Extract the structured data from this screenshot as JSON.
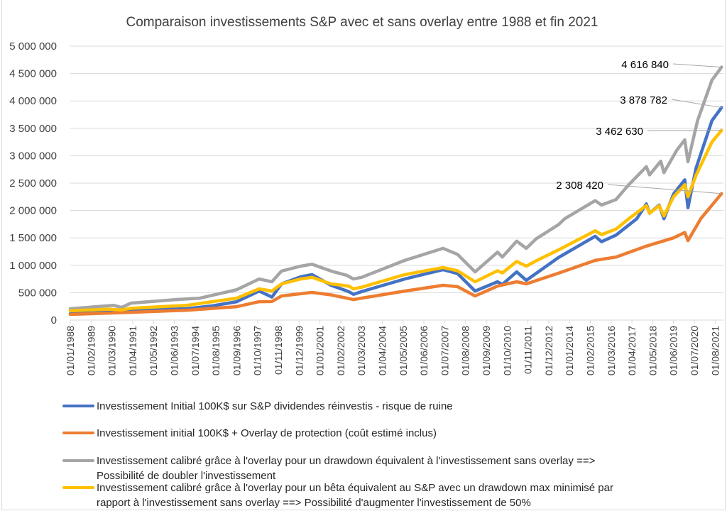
{
  "chart_data": {
    "type": "line",
    "title": "Comparaison investissements S&P avec et sans overlay entre 1988 et fin 2021",
    "xlabel": "",
    "ylabel": "",
    "ylim": [
      0,
      5000000
    ],
    "grid": true,
    "legend_position": "bottom",
    "yticks": [
      "0",
      "500 000",
      "1 000 000",
      "1 500 000",
      "2 000 000",
      "2 500 000",
      "3 000 000",
      "3 500 000",
      "4 000 000",
      "4 500 000",
      "5 000 000"
    ],
    "xticks": [
      "01/01/1988",
      "01/02/1989",
      "01/03/1990",
      "01/04/1991",
      "01/05/1992",
      "01/06/1993",
      "01/07/1994",
      "01/08/1995",
      "01/09/1996",
      "01/10/1997",
      "01/11/1998",
      "01/12/1999",
      "01/01/2001",
      "01/02/2002",
      "01/03/2003",
      "01/04/2004",
      "01/05/2005",
      "01/06/2006",
      "01/07/2007",
      "01/08/2008",
      "01/09/2009",
      "01/10/2010",
      "01/11/2011",
      "01/12/2012",
      "01/01/2014",
      "01/02/2015",
      "01/03/2016",
      "01/04/2017",
      "01/05/2018",
      "01/06/2019",
      "01/07/2020",
      "01/08/2021"
    ],
    "series": [
      {
        "name": "Investissement Initial 100K$ sur S&P dividendes réinvestis - risque de ruine",
        "color": "#4472C4",
        "points": [
          [
            "1988-01",
            117000
          ],
          [
            "1990-01",
            160000
          ],
          [
            "1990-09",
            150000
          ],
          [
            "1991-03",
            175000
          ],
          [
            "1994-02",
            207000
          ],
          [
            "1995-06",
            260000
          ],
          [
            "1996-09",
            335000
          ],
          [
            "1997-11",
            530000
          ],
          [
            "1998-07",
            420000
          ],
          [
            "1999-01",
            660000
          ],
          [
            "2000-01",
            790000
          ],
          [
            "2000-08",
            830000
          ],
          [
            "2001-08",
            635000
          ],
          [
            "2002-07",
            520000
          ],
          [
            "2002-10",
            470000
          ],
          [
            "2003-03",
            520000
          ],
          [
            "2005-06",
            750000
          ],
          [
            "2007-06",
            920000
          ],
          [
            "2008-03",
            850000
          ],
          [
            "2009-02",
            530000
          ],
          [
            "2010-04",
            700000
          ],
          [
            "2010-07",
            650000
          ],
          [
            "2011-04",
            880000
          ],
          [
            "2011-10",
            725000
          ],
          [
            "2012-04",
            850000
          ],
          [
            "2013-06",
            1140000
          ],
          [
            "2015-05",
            1530000
          ],
          [
            "2015-09",
            1430000
          ],
          [
            "2016-06",
            1550000
          ],
          [
            "2017-07",
            1850000
          ],
          [
            "2018-01",
            2120000
          ],
          [
            "2018-03",
            1950000
          ],
          [
            "2018-09",
            2100000
          ],
          [
            "2018-12",
            1850000
          ],
          [
            "2019-06",
            2300000
          ],
          [
            "2020-01",
            2560000
          ],
          [
            "2020-03",
            2050000
          ],
          [
            "2020-08",
            2770000
          ],
          [
            "2021-06",
            3640000
          ],
          [
            "2021-12",
            3878782
          ]
        ]
      },
      {
        "name": "Investissement initial 100K$ + Overlay de protection (coût estimé inclus)",
        "color": "#ED7D31",
        "points": [
          [
            "1988-01",
            103000
          ],
          [
            "1991-01",
            140000
          ],
          [
            "1994-02",
            180000
          ],
          [
            "1996-09",
            245000
          ],
          [
            "1997-11",
            335000
          ],
          [
            "1998-07",
            340000
          ],
          [
            "1999-01",
            440000
          ],
          [
            "2000-08",
            505000
          ],
          [
            "2001-08",
            460000
          ],
          [
            "2002-10",
            375000
          ],
          [
            "2003-03",
            400000
          ],
          [
            "2005-06",
            530000
          ],
          [
            "2007-06",
            635000
          ],
          [
            "2008-03",
            610000
          ],
          [
            "2009-02",
            440000
          ],
          [
            "2010-04",
            620000
          ],
          [
            "2011-04",
            700000
          ],
          [
            "2011-10",
            660000
          ],
          [
            "2013-06",
            855000
          ],
          [
            "2015-05",
            1090000
          ],
          [
            "2016-06",
            1150000
          ],
          [
            "2018-01",
            1350000
          ],
          [
            "2019-06",
            1500000
          ],
          [
            "2020-01",
            1600000
          ],
          [
            "2020-03",
            1450000
          ],
          [
            "2020-11",
            1850000
          ],
          [
            "2021-12",
            2308420
          ]
        ]
      },
      {
        "name": "Investissement calibré grâce à l'overlay pour un drawdown équivalent à l'investissement sans overlay ==> Possibilité de doubler l'investissement",
        "color": "#A5A5A5",
        "points": [
          [
            "1988-01",
            207000
          ],
          [
            "1990-04",
            270000
          ],
          [
            "1990-09",
            230000
          ],
          [
            "1991-03",
            310000
          ],
          [
            "1993-07",
            375000
          ],
          [
            "1994-10",
            400000
          ],
          [
            "1996-09",
            555000
          ],
          [
            "1997-11",
            750000
          ],
          [
            "1998-07",
            700000
          ],
          [
            "1999-01",
            895000
          ],
          [
            "2000-01",
            985000
          ],
          [
            "2000-08",
            1020000
          ],
          [
            "2001-08",
            895000
          ],
          [
            "2002-06",
            815000
          ],
          [
            "2002-10",
            750000
          ],
          [
            "2003-03",
            780000
          ],
          [
            "2005-06",
            1090000
          ],
          [
            "2007-06",
            1310000
          ],
          [
            "2008-03",
            1200000
          ],
          [
            "2009-02",
            880000
          ],
          [
            "2010-04",
            1240000
          ],
          [
            "2010-07",
            1150000
          ],
          [
            "2011-04",
            1440000
          ],
          [
            "2011-10",
            1310000
          ],
          [
            "2012-04",
            1480000
          ],
          [
            "2013-06",
            1740000
          ],
          [
            "2013-10",
            1850000
          ],
          [
            "2015-05",
            2180000
          ],
          [
            "2015-09",
            2100000
          ],
          [
            "2016-06",
            2200000
          ],
          [
            "2017-02",
            2470000
          ],
          [
            "2018-01",
            2800000
          ],
          [
            "2018-03",
            2650000
          ],
          [
            "2018-10",
            2900000
          ],
          [
            "2018-12",
            2690000
          ],
          [
            "2019-08",
            3100000
          ],
          [
            "2020-01",
            3290000
          ],
          [
            "2020-03",
            2890000
          ],
          [
            "2020-09",
            3640000
          ],
          [
            "2021-06",
            4380000
          ],
          [
            "2021-12",
            4616840
          ]
        ]
      },
      {
        "name": "Investissement calibré grâce à l'overlay pour un bêta équivalent au S&P avec un drawdown max minimisé par rapport à l'investissement sans overlay ==> Possibilité d'augmenter l'investissement de 50%",
        "color": "#FFC000",
        "points": [
          [
            "1988-01",
            170000
          ],
          [
            "1990-01",
            200000
          ],
          [
            "1990-09",
            185000
          ],
          [
            "1991-03",
            215000
          ],
          [
            "1994-02",
            270000
          ],
          [
            "1996-09",
            400000
          ],
          [
            "1997-11",
            570000
          ],
          [
            "1998-07",
            530000
          ],
          [
            "1999-01",
            660000
          ],
          [
            "2000-01",
            750000
          ],
          [
            "2000-08",
            780000
          ],
          [
            "2001-08",
            660000
          ],
          [
            "2002-07",
            620000
          ],
          [
            "2002-10",
            570000
          ],
          [
            "2003-03",
            600000
          ],
          [
            "2005-06",
            830000
          ],
          [
            "2007-06",
            960000
          ],
          [
            "2008-03",
            900000
          ],
          [
            "2009-02",
            700000
          ],
          [
            "2010-04",
            900000
          ],
          [
            "2010-07",
            860000
          ],
          [
            "2011-04",
            1070000
          ],
          [
            "2011-10",
            985000
          ],
          [
            "2012-04",
            1080000
          ],
          [
            "2013-06",
            1280000
          ],
          [
            "2015-05",
            1630000
          ],
          [
            "2015-09",
            1560000
          ],
          [
            "2016-06",
            1660000
          ],
          [
            "2017-02",
            1850000
          ],
          [
            "2018-01",
            2090000
          ],
          [
            "2018-03",
            1950000
          ],
          [
            "2018-09",
            2090000
          ],
          [
            "2018-12",
            1900000
          ],
          [
            "2019-06",
            2250000
          ],
          [
            "2020-01",
            2470000
          ],
          [
            "2020-03",
            2250000
          ],
          [
            "2020-08",
            2640000
          ],
          [
            "2021-06",
            3250000
          ],
          [
            "2021-12",
            3462630
          ]
        ]
      }
    ],
    "annotations": [
      "4 616 840",
      "3 878 782",
      "3 462 630",
      "2 308 420"
    ],
    "legend": [
      {
        "lines": [
          "Investissement Initial 100K$ sur S&P dividendes réinvestis - risque de ruine"
        ],
        "color": "#4472C4"
      },
      {
        "lines": [
          "Investissement initial 100K$ + Overlay de protection (coût estimé inclus)"
        ],
        "color": "#ED7D31"
      },
      {
        "lines": [
          "Investissement calibré grâce à l'overlay pour un drawdown équivalent à l'investissement sans overlay ==>",
          "Possibilité de doubler l'investissement"
        ],
        "color": "#A5A5A5"
      },
      {
        "lines": [
          "Investissement calibré grâce à l'overlay pour un bêta équivalent au S&P avec un drawdown max minimisé par",
          "rapport à l'investissement sans overlay ==> Possibilité d'augmenter l'investissement de 50%"
        ],
        "color": "#FFC000"
      }
    ]
  }
}
